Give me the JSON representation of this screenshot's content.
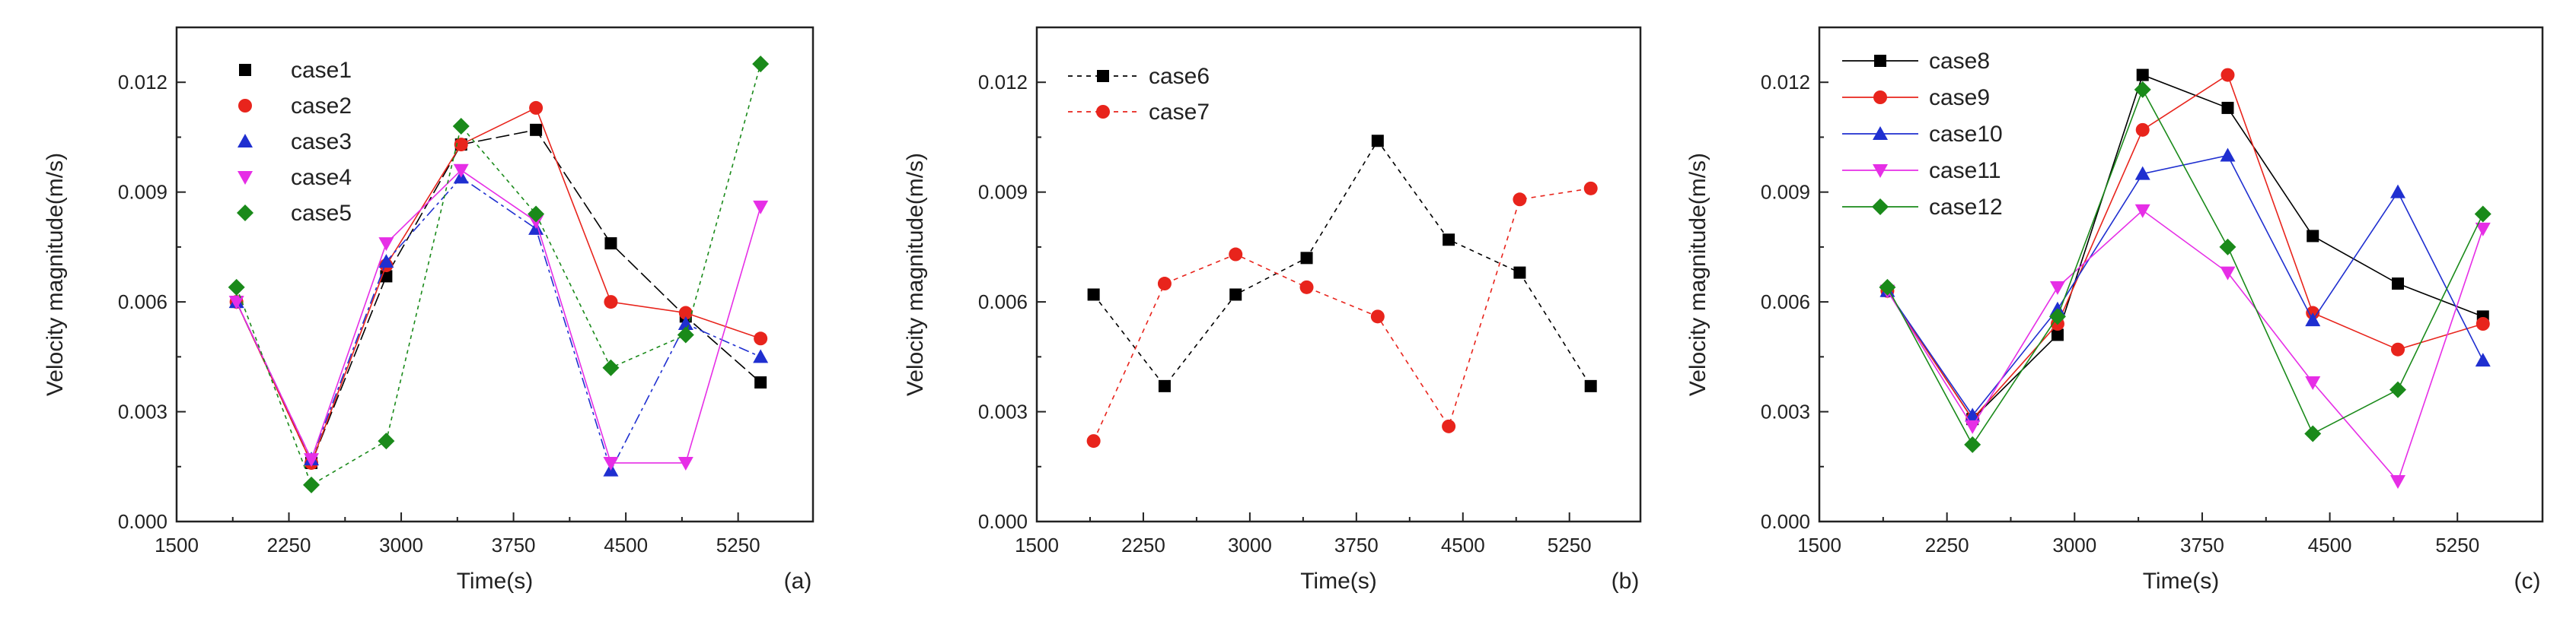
{
  "chart_data": [
    {
      "type": "line",
      "panel_label": "(a)",
      "xlabel": "Time(s)",
      "ylabel": "Velocity magnitude(m/s)",
      "xlim": [
        1500,
        5750
      ],
      "ylim": [
        0,
        0.0135
      ],
      "xticks": [
        1500,
        2250,
        3000,
        3750,
        4500,
        5250
      ],
      "xtick_labels": [
        "1500",
        "2250",
        "3000",
        "3750",
        "4500",
        "5250"
      ],
      "yticks": [
        0,
        0.003,
        0.006,
        0.009,
        0.012
      ],
      "ytick_labels": [
        "0.000",
        "0.003",
        "0.006",
        "0.009",
        "0.012"
      ],
      "x": [
        1900,
        2400,
        2900,
        3400,
        3900,
        4400,
        4900,
        5400
      ],
      "series": [
        {
          "name": "case1",
          "color": "#000000",
          "marker": "square",
          "values": [
            0.006,
            0.0016,
            0.0067,
            0.0103,
            0.0107,
            0.0076,
            0.0056,
            0.0038
          ]
        },
        {
          "name": "case2",
          "color": "#e8241c",
          "marker": "circle",
          "values": [
            0.006,
            0.0016,
            0.007,
            0.0103,
            0.0113,
            0.006,
            0.0057,
            0.005
          ]
        },
        {
          "name": "case3",
          "color": "#1f2fd0",
          "marker": "triangle-up",
          "values": [
            0.006,
            0.0017,
            0.0071,
            0.0094,
            0.008,
            0.0014,
            0.0054,
            0.0045
          ]
        },
        {
          "name": "case4",
          "color": "#e62ee6",
          "marker": "triangle-down",
          "values": [
            0.006,
            0.0017,
            0.0076,
            0.0096,
            0.0082,
            0.0016,
            0.0016,
            0.0086
          ]
        },
        {
          "name": "case5",
          "color": "#1a8a1a",
          "marker": "diamond",
          "values": [
            0.0064,
            0.001,
            0.0022,
            0.0108,
            0.0084,
            0.0042,
            0.0051,
            0.0125
          ]
        }
      ]
    },
    {
      "type": "line",
      "panel_label": "(b)",
      "xlabel": "Time(s)",
      "ylabel": "Velocity magnitude(m/s)",
      "xlim": [
        1500,
        5750
      ],
      "ylim": [
        0,
        0.0135
      ],
      "xticks": [
        1500,
        2250,
        3000,
        3750,
        4500,
        5250
      ],
      "xtick_labels": [
        "1500",
        "2250",
        "3000",
        "3750",
        "4500",
        "5250"
      ],
      "yticks": [
        0,
        0.003,
        0.006,
        0.009,
        0.012
      ],
      "ytick_labels": [
        "0.000",
        "0.003",
        "0.006",
        "0.009",
        "0.012"
      ],
      "x": [
        1900,
        2400,
        2900,
        3400,
        3900,
        4400,
        4900,
        5400
      ],
      "series": [
        {
          "name": "case6",
          "color": "#000000",
          "marker": "square",
          "values": [
            0.0062,
            0.0037,
            0.0062,
            0.0072,
            0.0104,
            0.0077,
            0.0068,
            0.0037
          ]
        },
        {
          "name": "case7",
          "color": "#e8241c",
          "marker": "circle",
          "values": [
            0.0022,
            0.0065,
            0.0073,
            0.0064,
            0.0056,
            0.0026,
            0.0088,
            0.0091
          ]
        }
      ]
    },
    {
      "type": "line",
      "panel_label": "(c)",
      "xlabel": "Time(s)",
      "ylabel": "Velocity magnitude(m/s)",
      "xlim": [
        1500,
        5750
      ],
      "ylim": [
        0,
        0.0135
      ],
      "xticks": [
        1500,
        2250,
        3000,
        3750,
        4500,
        5250
      ],
      "xtick_labels": [
        "1500",
        "2250",
        "3000",
        "3750",
        "4500",
        "5250"
      ],
      "yticks": [
        0,
        0.003,
        0.006,
        0.009,
        0.012
      ],
      "ytick_labels": [
        "0.000",
        "0.003",
        "0.006",
        "0.009",
        "0.012"
      ],
      "x": [
        1900,
        2400,
        2900,
        3400,
        3900,
        4400,
        4900,
        5400
      ],
      "series": [
        {
          "name": "case8",
          "color": "#000000",
          "marker": "square",
          "values": [
            0.0063,
            0.0028,
            0.0051,
            0.0122,
            0.0113,
            0.0078,
            0.0065,
            0.0056
          ]
        },
        {
          "name": "case9",
          "color": "#e8241c",
          "marker": "circle",
          "values": [
            0.0063,
            0.0028,
            0.0054,
            0.0107,
            0.0122,
            0.0057,
            0.0047,
            0.0054
          ]
        },
        {
          "name": "case10",
          "color": "#1f2fd0",
          "marker": "triangle-up",
          "values": [
            0.0063,
            0.0029,
            0.0058,
            0.0095,
            0.01,
            0.0055,
            0.009,
            0.0044
          ]
        },
        {
          "name": "case11",
          "color": "#e62ee6",
          "marker": "triangle-down",
          "values": [
            0.0063,
            0.0026,
            0.0064,
            0.0085,
            0.0068,
            0.0038,
            0.0011,
            0.008
          ]
        },
        {
          "name": "case12",
          "color": "#1a8a1a",
          "marker": "diamond",
          "values": [
            0.0064,
            0.0021,
            0.0056,
            0.0118,
            0.0075,
            0.0024,
            0.0036,
            0.0084
          ]
        }
      ]
    }
  ]
}
